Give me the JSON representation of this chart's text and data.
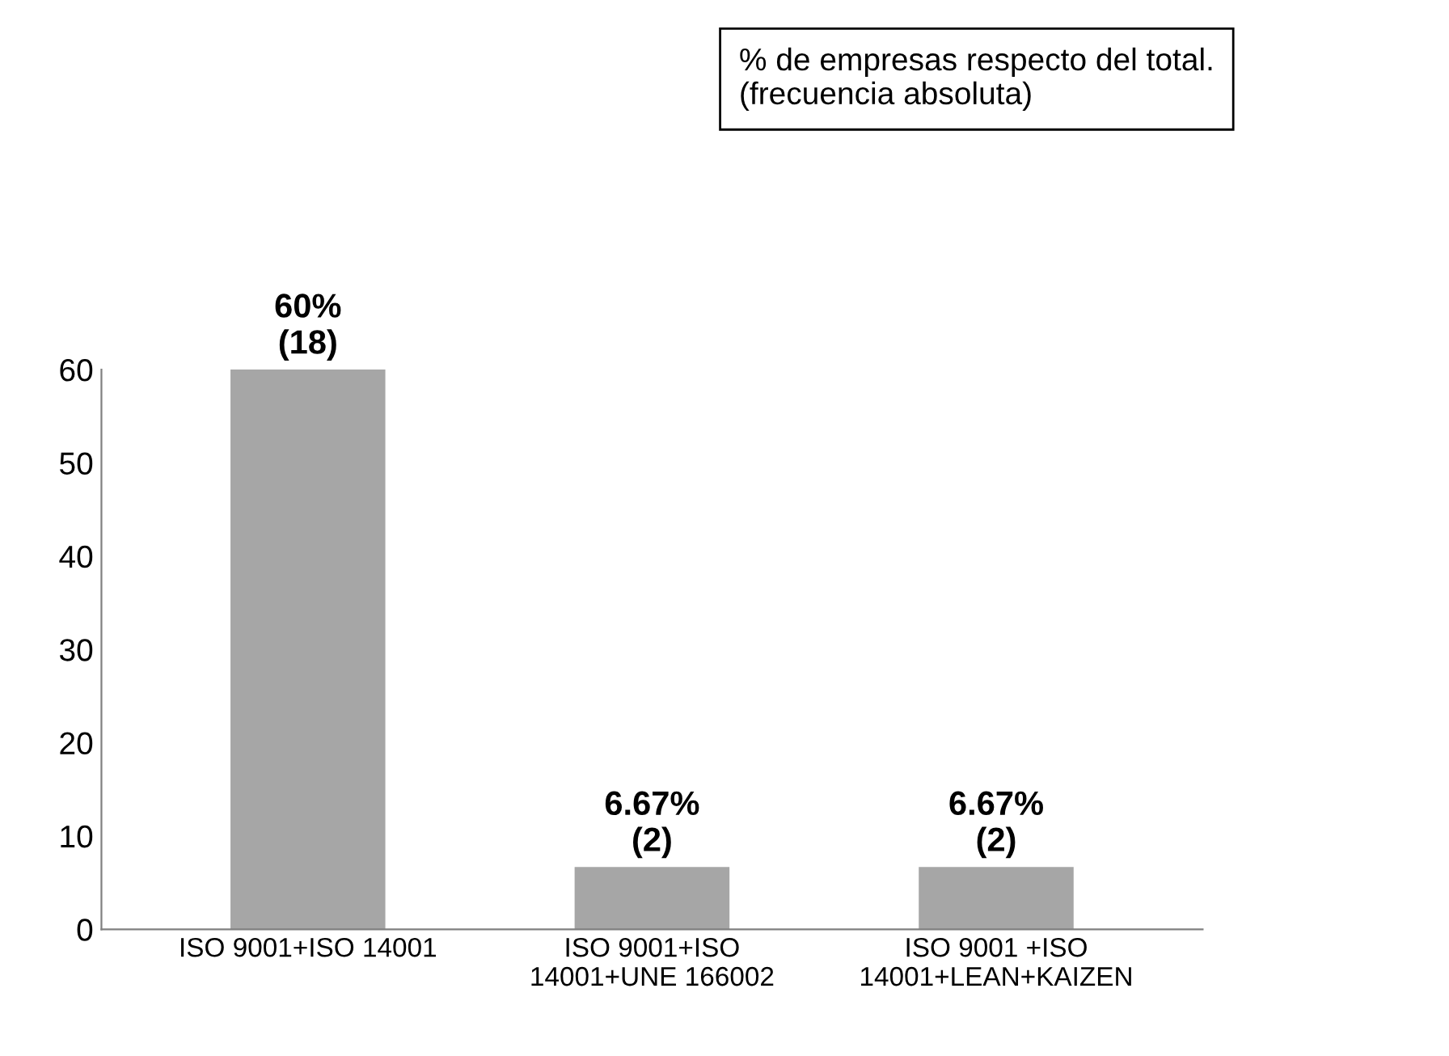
{
  "chart_data": {
    "type": "bar",
    "categories": [
      "ISO 9001+ISO 14001",
      "ISO 9001+ISO\n14001+UNE 166002",
      "ISO 9001 +ISO\n14001+LEAN+KAIZEN"
    ],
    "values": [
      60,
      6.67,
      6.67
    ],
    "value_labels": [
      "60%\n(18)",
      "6.67%\n(2)",
      "6.67%\n(2)"
    ],
    "color": "#a6a6a6",
    "ylim": [
      0,
      60
    ],
    "yticks": [
      0,
      10,
      20,
      30,
      40,
      50,
      60
    ],
    "annotations": [
      "% de empresas respecto del total.\n(frecuencia absoluta)"
    ],
    "grid": false,
    "legend": false
  }
}
